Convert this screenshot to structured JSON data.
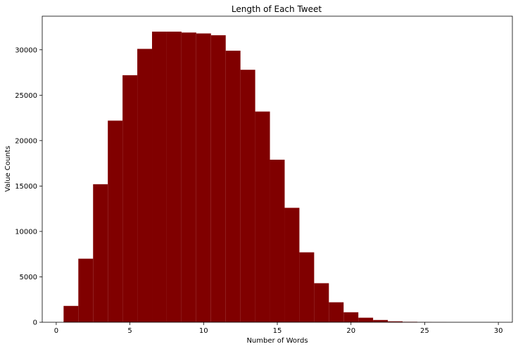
{
  "chart_data": {
    "type": "bar",
    "title": "Length of Each Tweet",
    "xlabel": "Number of Words",
    "ylabel": "Value Counts",
    "xlim": [
      -0.95,
      30.95
    ],
    "ylim": [
      0,
      33700
    ],
    "x_ticks": [
      0,
      5,
      10,
      15,
      20,
      25,
      30
    ],
    "y_ticks": [
      0,
      5000,
      10000,
      15000,
      20000,
      25000,
      30000
    ],
    "bar_color": "#800000",
    "grid": false,
    "bars": [
      {
        "x": 1,
        "value": 1800
      },
      {
        "x": 2,
        "value": 7000
      },
      {
        "x": 3,
        "value": 15200
      },
      {
        "x": 4,
        "value": 22200
      },
      {
        "x": 5,
        "value": 27200
      },
      {
        "x": 6,
        "value": 30100
      },
      {
        "x": 7,
        "value": 32000
      },
      {
        "x": 8,
        "value": 32000
      },
      {
        "x": 9,
        "value": 31900
      },
      {
        "x": 10,
        "value": 31800
      },
      {
        "x": 11,
        "value": 31600
      },
      {
        "x": 12,
        "value": 29900
      },
      {
        "x": 13,
        "value": 27800
      },
      {
        "x": 14,
        "value": 23200
      },
      {
        "x": 15,
        "value": 17900
      },
      {
        "x": 16,
        "value": 12600
      },
      {
        "x": 17,
        "value": 7700
      },
      {
        "x": 18,
        "value": 4300
      },
      {
        "x": 19,
        "value": 2200
      },
      {
        "x": 20,
        "value": 1100
      },
      {
        "x": 21,
        "value": 500
      },
      {
        "x": 22,
        "value": 250
      },
      {
        "x": 23,
        "value": 100
      },
      {
        "x": 24,
        "value": 50
      },
      {
        "x": 25,
        "value": 20
      },
      {
        "x": 26,
        "value": 10
      },
      {
        "x": 27,
        "value": 5
      },
      {
        "x": 28,
        "value": 3
      },
      {
        "x": 29,
        "value": 2
      }
    ]
  }
}
